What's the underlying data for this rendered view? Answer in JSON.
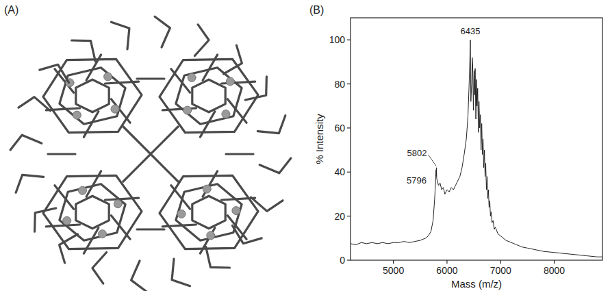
{
  "panel_labels": [
    "(A)",
    "(B)"
  ],
  "chart_data": {
    "type": "line",
    "x_label": "Mass (m/z)",
    "y_label": "% Intensity",
    "color": "#222222",
    "xlim": [
      4200,
      8900
    ],
    "xticks": [
      5000,
      6000,
      7000,
      8000
    ],
    "ylim": [
      0,
      110
    ],
    "yticks": [
      0,
      20,
      40,
      60,
      80,
      100
    ],
    "grid": false,
    "x": [
      4200,
      4300,
      4400,
      4500,
      4600,
      4700,
      4800,
      4900,
      5000,
      5100,
      5200,
      5300,
      5400,
      5500,
      5600,
      5650,
      5700,
      5740,
      5770,
      5790,
      5796,
      5799,
      5802,
      5808,
      5820,
      5840,
      5870,
      5900,
      5930,
      5960,
      6000,
      6040,
      6080,
      6120,
      6160,
      6200,
      6240,
      6280,
      6320,
      6360,
      6390,
      6410,
      6425,
      6435,
      6445,
      6460,
      6470,
      6480,
      6492,
      6505,
      6515,
      6525,
      6538,
      6550,
      6560,
      6572,
      6585,
      6597,
      6610,
      6622,
      6635,
      6648,
      6660,
      6672,
      6685,
      6698,
      6710,
      6722,
      6735,
      6748,
      6760,
      6772,
      6785,
      6798,
      6810,
      6822,
      6840,
      6860,
      6880,
      6900,
      6950,
      7000,
      7100,
      7200,
      7300,
      7400,
      7500,
      7600,
      7800,
      8000,
      8200,
      8400,
      8600,
      8800,
      8900
    ],
    "values": [
      7.5,
      7,
      8,
      7.5,
      8,
      7.5,
      8,
      7.5,
      8,
      8,
      8.5,
      8,
      8.5,
      9,
      10,
      11,
      13,
      18,
      28,
      38,
      41,
      38,
      42,
      37,
      36,
      34,
      35,
      32,
      33,
      30,
      32,
      31,
      33,
      32,
      34,
      36,
      38,
      42,
      48,
      55,
      65,
      78,
      90,
      100,
      72,
      80,
      92,
      88,
      68,
      86,
      75,
      87,
      64,
      82,
      70,
      78,
      58,
      72,
      60,
      66,
      50,
      62,
      48,
      55,
      42,
      50,
      38,
      44,
      32,
      38,
      28,
      32,
      24,
      27,
      20,
      22,
      17,
      18,
      14,
      15,
      12,
      11,
      9,
      8,
      7,
      6,
      5.5,
      5,
      4,
      3.5,
      3,
      2.5,
      2,
      1.5,
      1.5
    ],
    "annotations": [
      {
        "text": "6435",
        "x": 6435,
        "y": 100
      },
      {
        "text": "5802",
        "x": 5802,
        "y": 42
      },
      {
        "text": "5796",
        "x": 5796,
        "y": 41
      }
    ]
  }
}
